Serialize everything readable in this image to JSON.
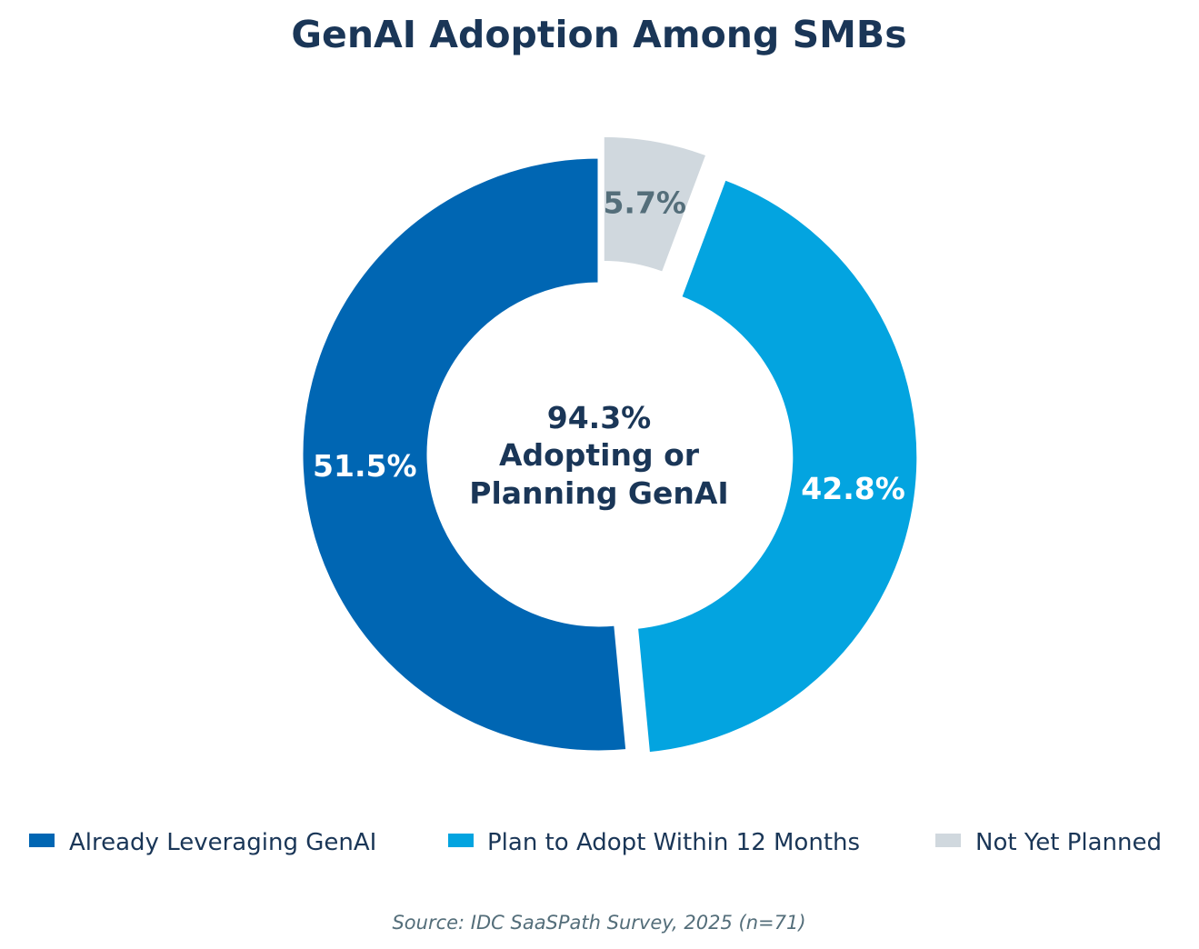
{
  "chart_data": {
    "type": "pie",
    "variant": "donut",
    "title": "GenAI Adoption Among SMBs",
    "slices": [
      {
        "name": "Not Yet Planned",
        "value": 5.7,
        "label": "5.7%",
        "color": "#d0d8de",
        "label_color": "#546e7a",
        "exploded": true
      },
      {
        "name": "Plan to Adopt Within 12 Months",
        "value": 42.8,
        "label": "42.8%",
        "color": "#03a4e0",
        "label_color": "#ffffff",
        "exploded": true
      },
      {
        "name": "Already Leveraging GenAI",
        "value": 51.5,
        "label": "51.5%",
        "color": "#0066b3",
        "label_color": "#ffffff",
        "exploded": false
      }
    ],
    "center_text": {
      "line1": "94.3%",
      "line2": "Adopting or",
      "line3": "Planning GenAI"
    },
    "legend": {
      "placement": "bottom",
      "entries": [
        {
          "name": "Already Leveraging GenAI",
          "color": "#0066b3"
        },
        {
          "name": "Plan to Adopt Within 12 Months",
          "color": "#03a4e0"
        },
        {
          "name": "Not Yet Planned",
          "color": "#d0d8de"
        }
      ]
    },
    "source": "Source: IDC SaaSPath Survey, 2025 (n=71)",
    "colors": {
      "title": "#1a3657",
      "text": "#1a3657",
      "source": "#546e7a"
    }
  }
}
